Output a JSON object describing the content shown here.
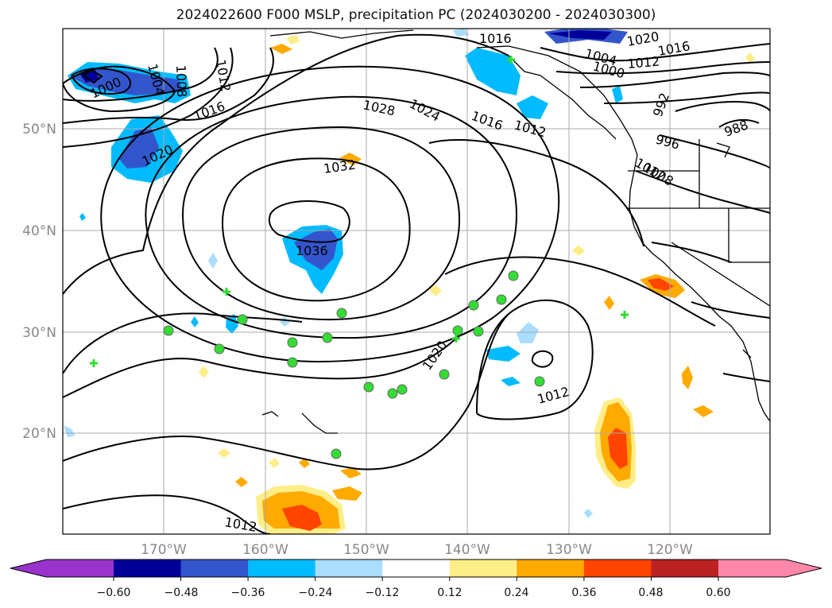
{
  "title": "2024022600 F000 MSLP, precipitation PC (2024030200 - 2024030300)",
  "map": {
    "lat_ticks": [
      "50°N",
      "40°N",
      "30°N",
      "20°N"
    ],
    "lon_ticks": [
      "170°W",
      "160°W",
      "150°W",
      "140°W",
      "130°W",
      "120°W"
    ],
    "gridlines": true,
    "isobar_labels": [
      "1000",
      "1004",
      "1008",
      "1012",
      "1016",
      "1020",
      "1012",
      "1016",
      "1028",
      "1024",
      "1032",
      "1036",
      "1020",
      "1012",
      "1012",
      "1016",
      "1012",
      "1020",
      "1004",
      "1000",
      "1016",
      "1012",
      "992",
      "996",
      "988",
      "1008"
    ]
  },
  "colorbar": {
    "ticks": [
      "−0.60",
      "−0.48",
      "−0.36",
      "−0.24",
      "−0.12",
      "0.12",
      "0.24",
      "0.36",
      "0.48",
      "0.60"
    ],
    "colors": [
      "#9933cc",
      "#000099",
      "#3355cc",
      "#00bbff",
      "#aaddff",
      "#ffffff",
      "#ffee88",
      "#ffaa00",
      "#ff4400",
      "#bb2222",
      "#ff88aa"
    ]
  }
}
